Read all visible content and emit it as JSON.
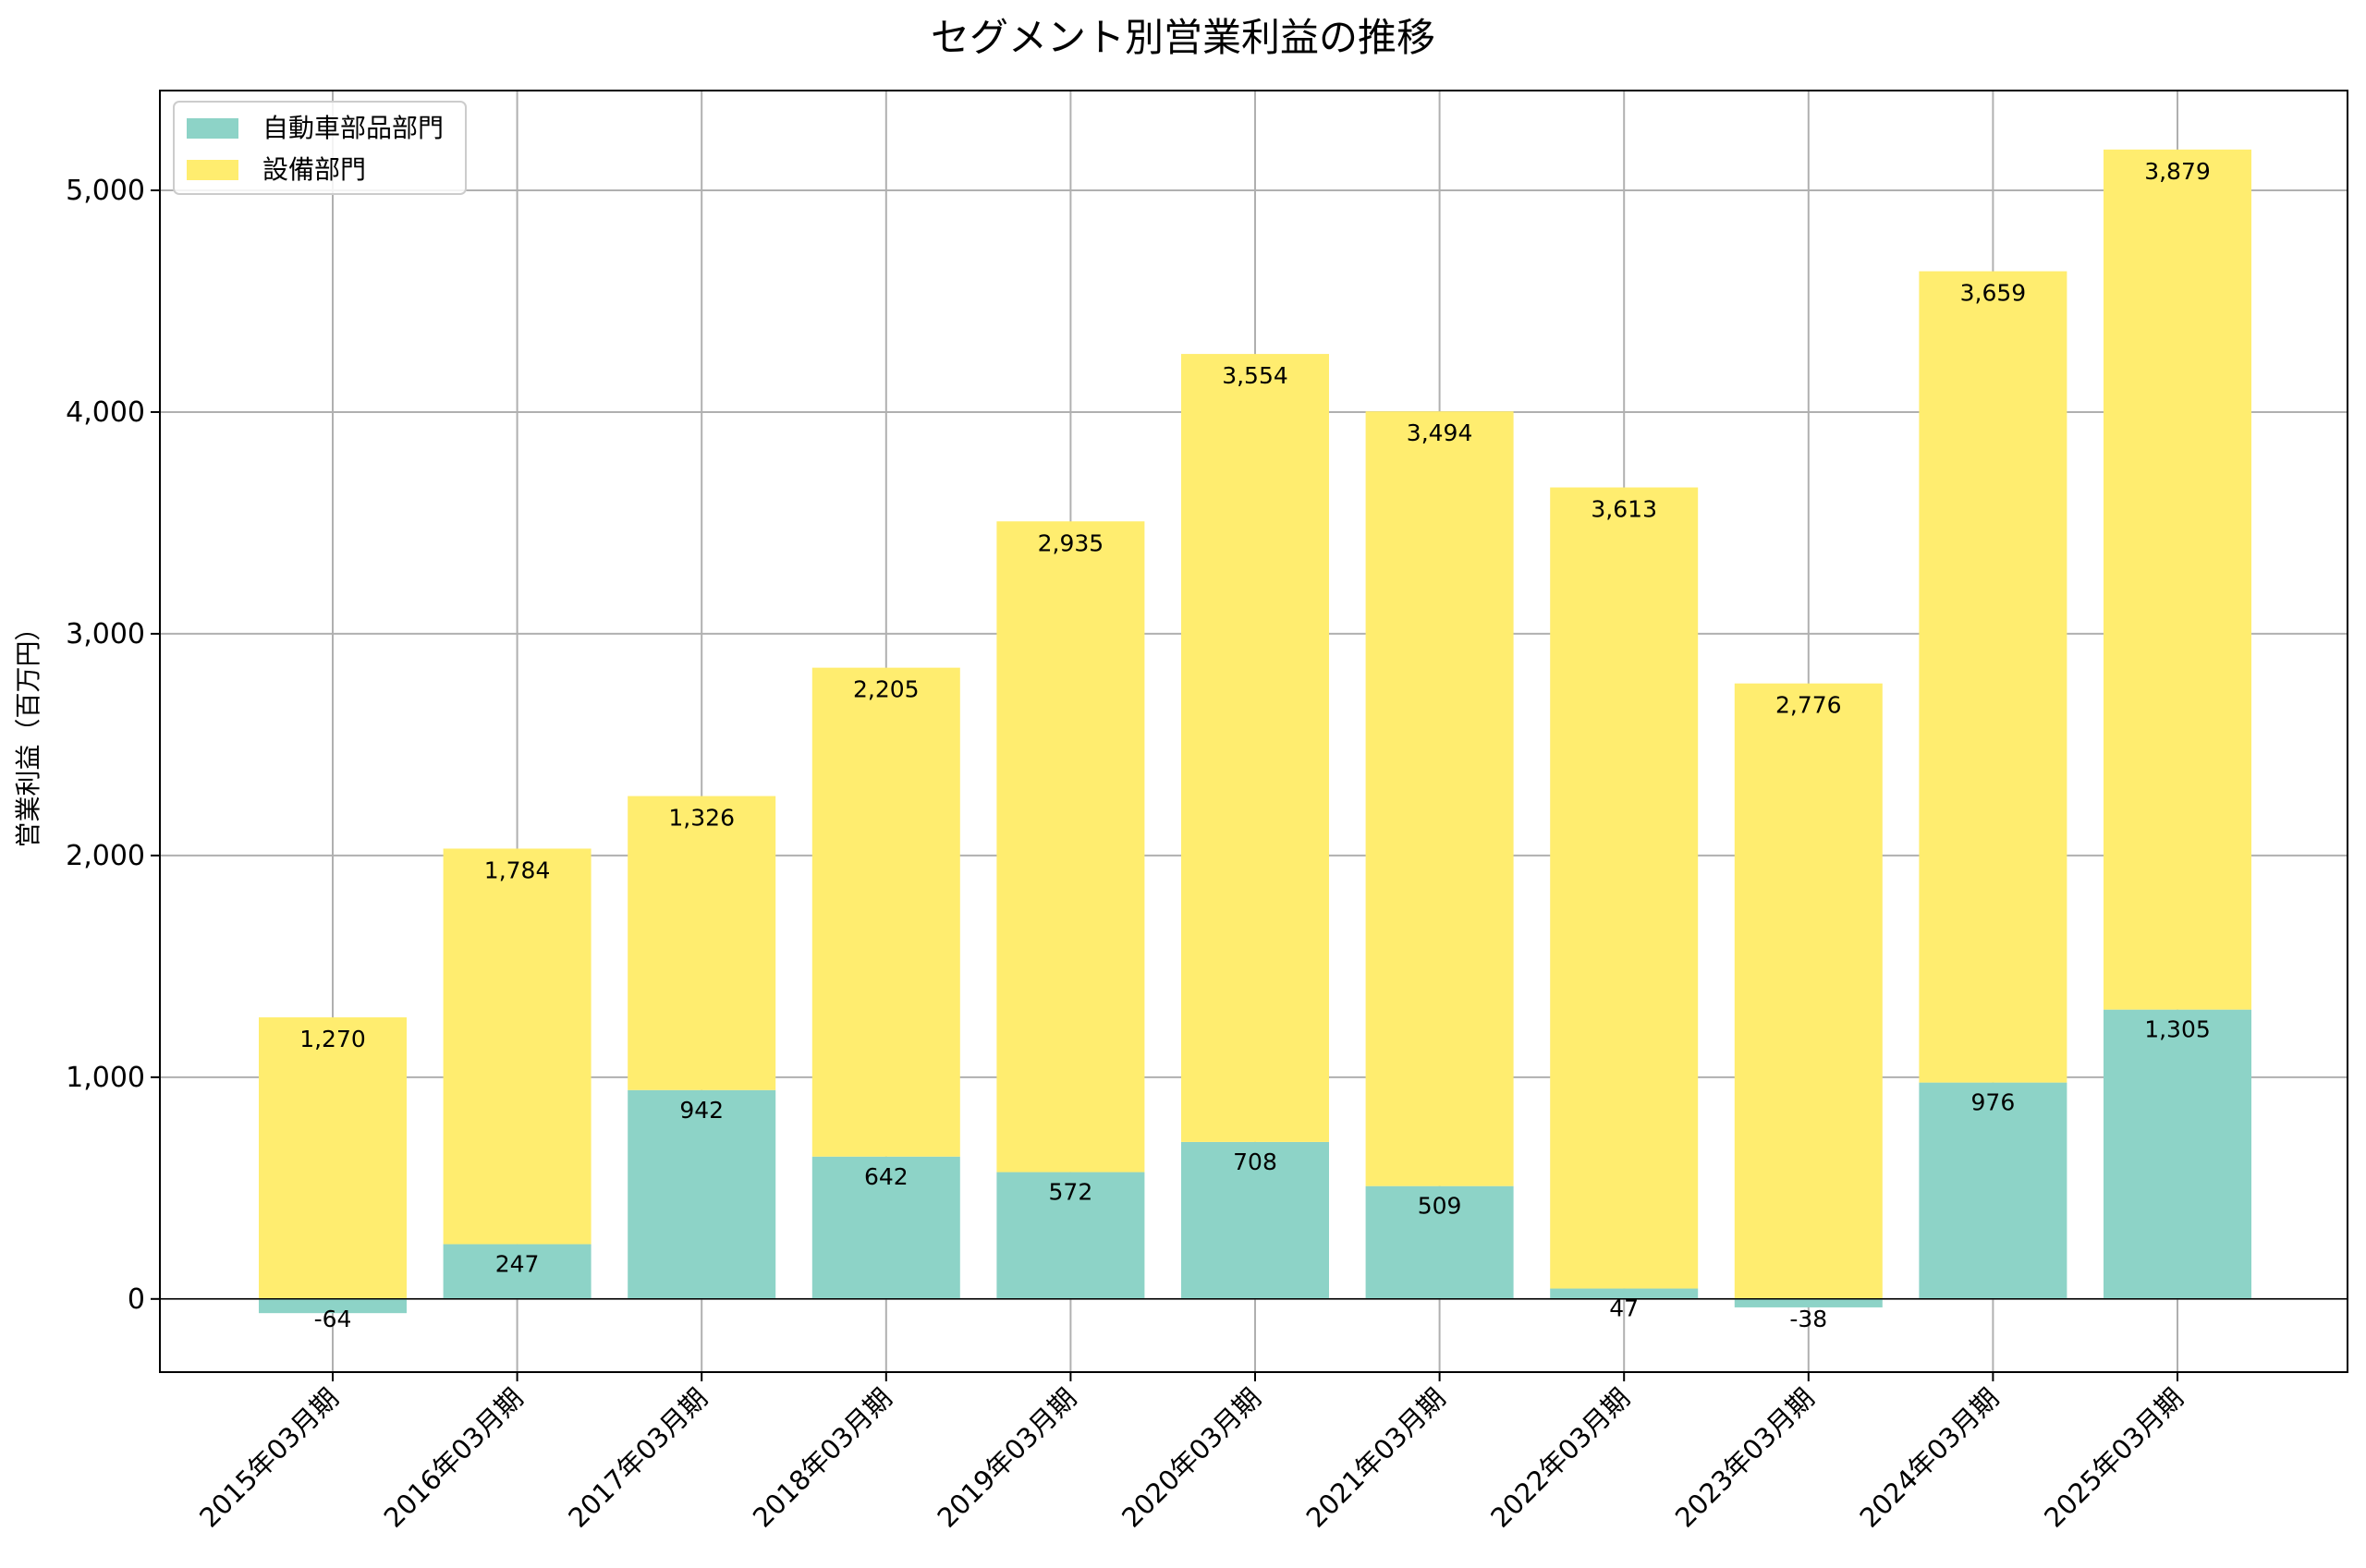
{
  "chart_data": {
    "type": "bar",
    "stacked": true,
    "title": "セグメント別営業利益の推移",
    "xlabel": "",
    "ylabel": "営業利益（百万円）",
    "ylim": [
      -330,
      5450
    ],
    "yticks": [
      0,
      1000,
      2000,
      3000,
      4000,
      5000
    ],
    "ytick_labels": [
      "0",
      "1,000",
      "2,000",
      "3,000",
      "4,000",
      "5,000"
    ],
    "grid": true,
    "legend_position": "top-left",
    "categories": [
      "2015年03月期",
      "2016年03月期",
      "2017年03月期",
      "2018年03月期",
      "2019年03月期",
      "2020年03月期",
      "2021年03月期",
      "2022年03月期",
      "2023年03月期",
      "2024年03月期",
      "2025年03月期"
    ],
    "series": [
      {
        "name": "自動車部品部門",
        "color": "#8dd3c7",
        "values": [
          -64,
          247,
          942,
          642,
          572,
          708,
          509,
          47,
          -38,
          976,
          1305
        ],
        "labels": [
          "-64",
          "247",
          "942",
          "642",
          "572",
          "708",
          "509",
          "47",
          "-38",
          "976",
          "1,305"
        ]
      },
      {
        "name": "設備部門",
        "color": "#ffed6f",
        "values": [
          1270,
          1784,
          1326,
          2205,
          2935,
          3554,
          3494,
          3613,
          2776,
          3659,
          3879
        ],
        "labels": [
          "1,270",
          "1,784",
          "1,326",
          "2,205",
          "2,935",
          "3,554",
          "3,494",
          "3,613",
          "2,776",
          "3,659",
          "3,879"
        ]
      }
    ]
  }
}
